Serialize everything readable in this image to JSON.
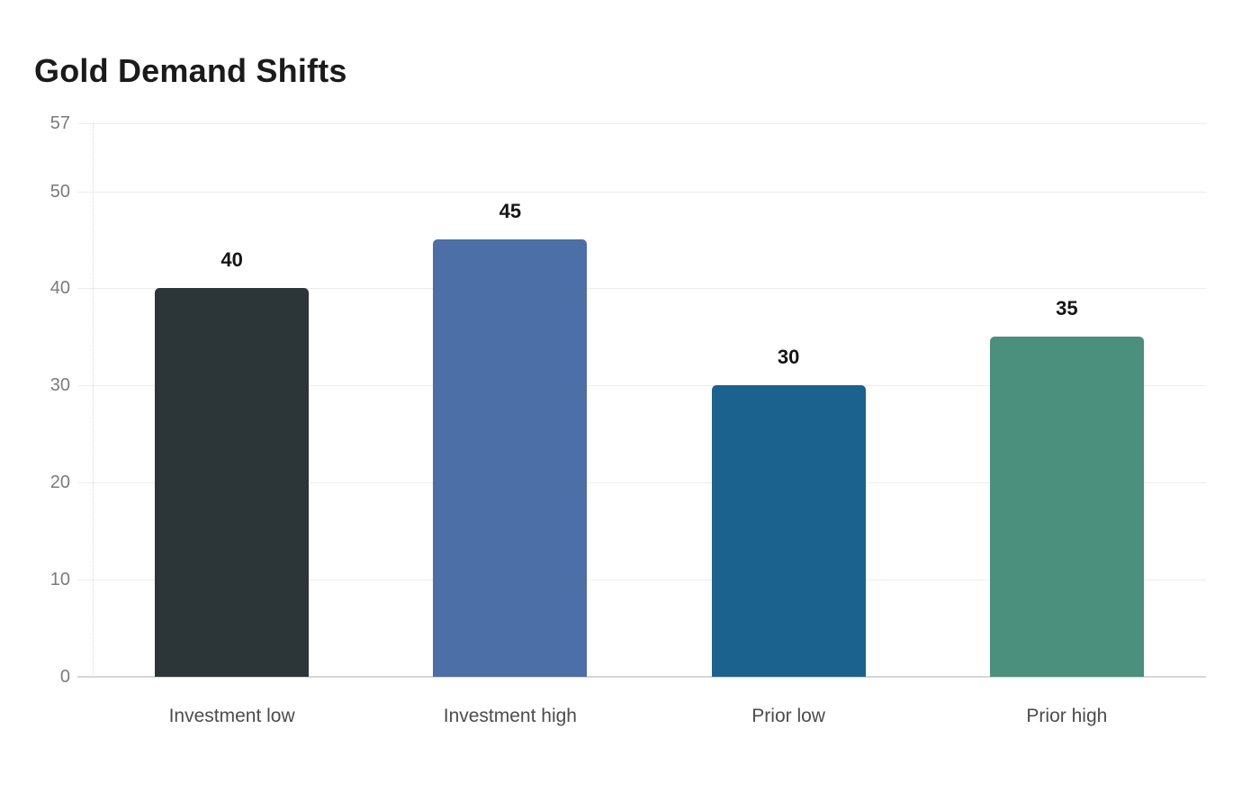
{
  "chart_data": {
    "type": "bar",
    "title": "Gold Demand Shifts",
    "categories": [
      "Investment low",
      "Investment high",
      "Prior low",
      "Prior high"
    ],
    "values": [
      40,
      45,
      30,
      35
    ],
    "data_labels": [
      "40",
      "45",
      "30",
      "35"
    ],
    "bar_colors": [
      "#2c3537",
      "#4b6fa6",
      "#1b628f",
      "#4b8f7d"
    ],
    "y_ticks": [
      57,
      50,
      40,
      30,
      20,
      10,
      0
    ],
    "ylim": [
      0,
      57
    ],
    "xlabel": "",
    "ylabel": "",
    "grid": true,
    "legend": false,
    "colors": {
      "background": "#ffffff",
      "title_text": "#1b1b1b",
      "tick_label_text": "#7b7b7b",
      "category_label_text": "#4c4c4c",
      "value_label_text": "#141414",
      "gridline": "#ededed",
      "baseline": "#d6d6d6",
      "axis_dotted_line": "#d8d8d8"
    }
  }
}
